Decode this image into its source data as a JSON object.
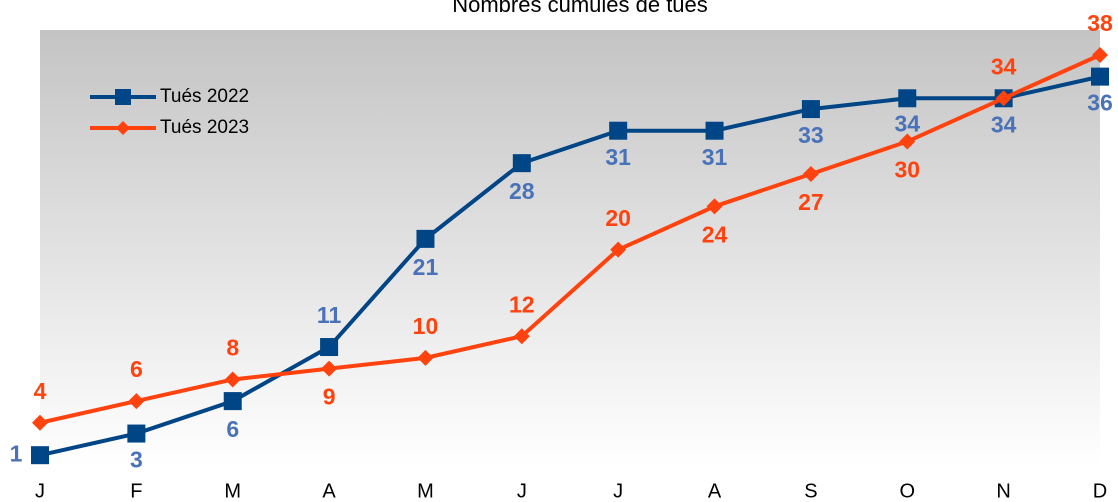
{
  "chart_data": {
    "type": "line",
    "title": "Nombres cumulés de tués",
    "categories": [
      "J",
      "F",
      "M",
      "A",
      "M",
      "J",
      "J",
      "A",
      "S",
      "O",
      "N",
      "D"
    ],
    "series": [
      {
        "name": "Tués 2022",
        "color": "#004586",
        "label_color": "#4a72b8",
        "marker": "square",
        "values": [
          1,
          3,
          6,
          11,
          21,
          28,
          31,
          31,
          33,
          34,
          34,
          36
        ]
      },
      {
        "name": "Tués 2023",
        "color": "#ff420e",
        "label_color": "#ff420e",
        "marker": "diamond",
        "values": [
          4,
          6,
          8,
          9,
          10,
          12,
          20,
          24,
          27,
          30,
          34,
          38
        ]
      }
    ],
    "legend": "upper left",
    "data_labels": true
  }
}
